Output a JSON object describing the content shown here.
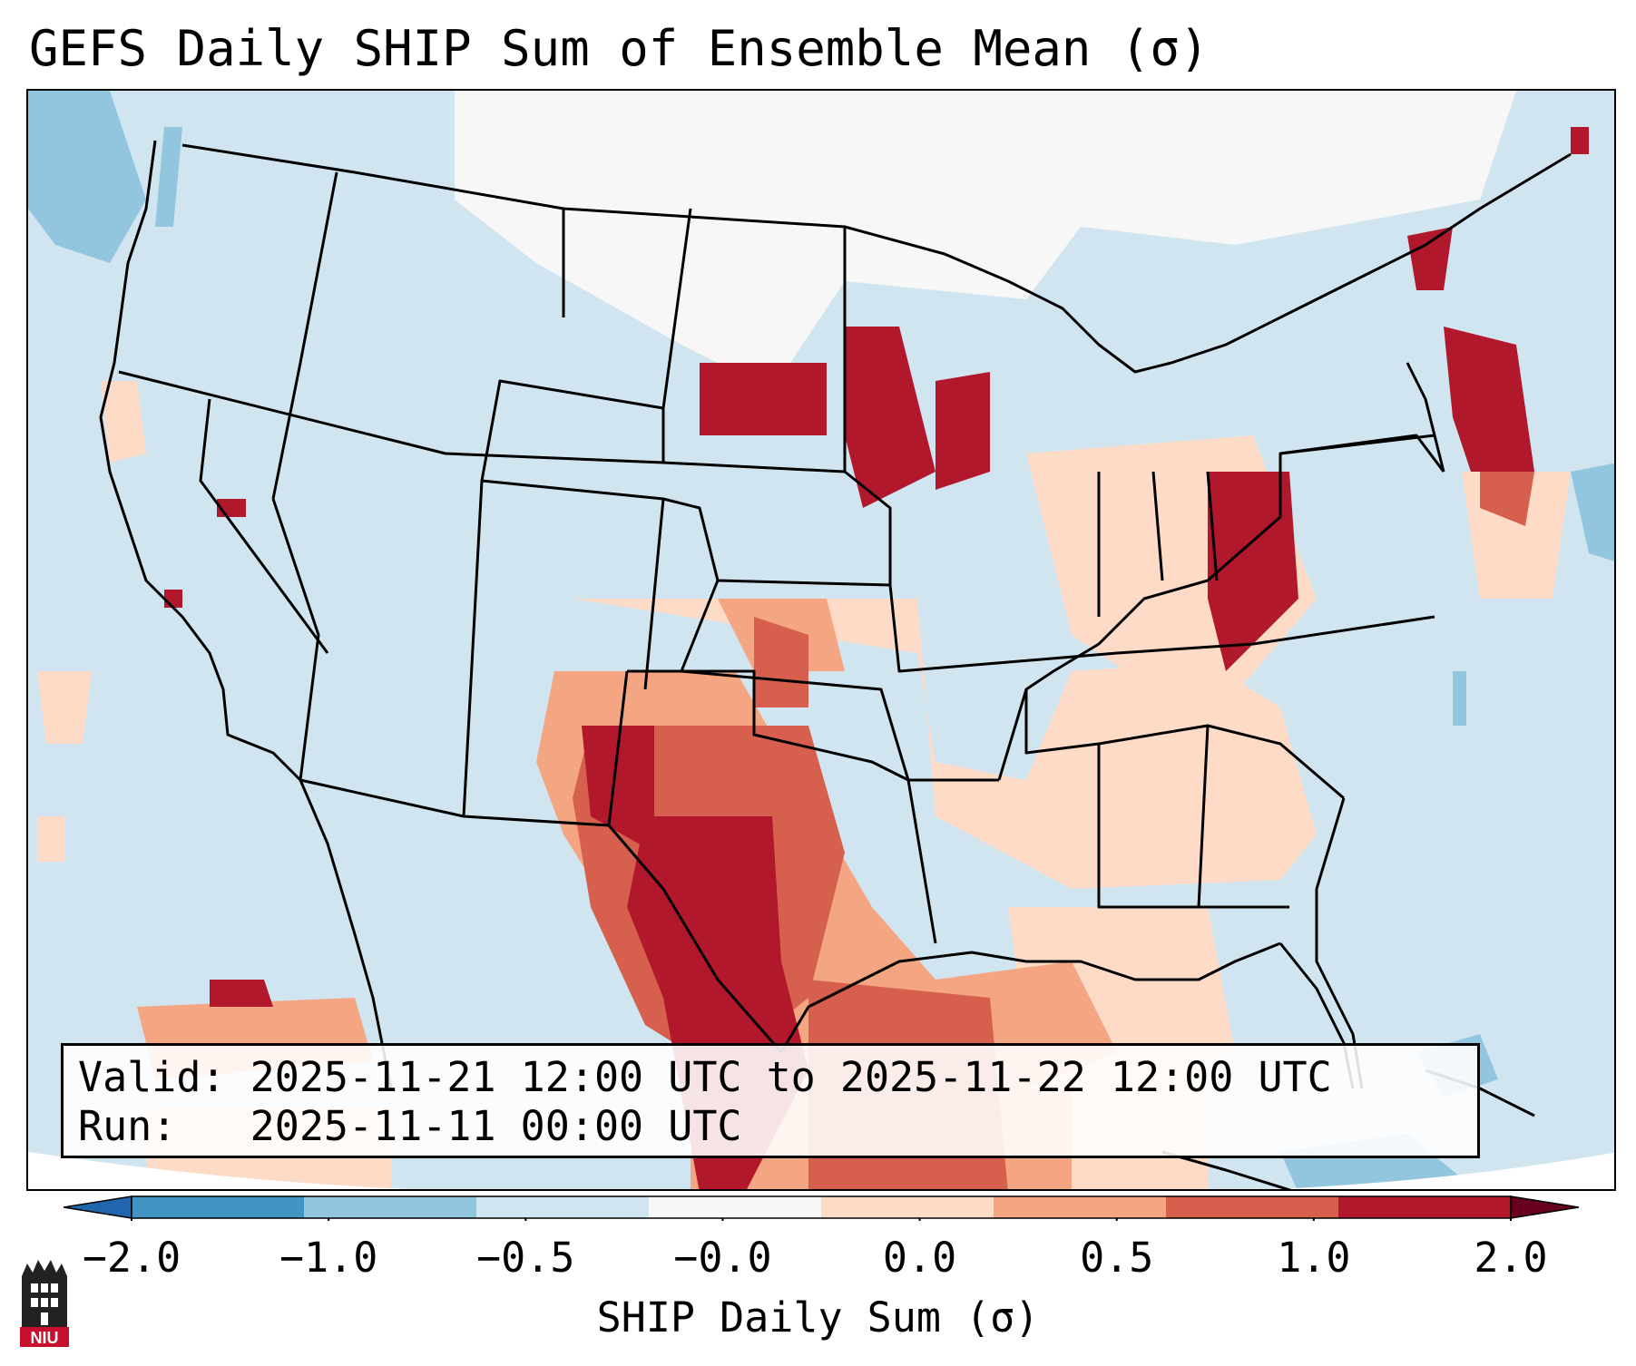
{
  "title": "GEFS Daily SHIP Sum of Ensemble Mean (σ)",
  "info": {
    "valid_label": "Valid:",
    "valid_value": "2025-11-21 12:00 UTC to 2025-11-22 12:00 UTC",
    "run_label": "Run:",
    "run_value": "2025-11-11 00:00 UTC"
  },
  "colorbar": {
    "label": "SHIP Daily Sum (σ)",
    "ticks": [
      "−2.0",
      "−1.0",
      "−0.5",
      "−0.0",
      "0.0",
      "0.5",
      "1.0",
      "2.0"
    ],
    "colors": [
      "#4393c3",
      "#92c5de",
      "#d1e5f0",
      "#f7f7f7",
      "#fddbc7",
      "#f4a582",
      "#d6604d",
      "#b2182b"
    ],
    "extend": "both"
  },
  "legend_colors": {
    "below": "#2166ac",
    "above": "#67001f",
    "background": "#d1e5f0",
    "border": "#000000"
  },
  "logo": {
    "text": "NIU",
    "color": "#c8102e"
  }
}
